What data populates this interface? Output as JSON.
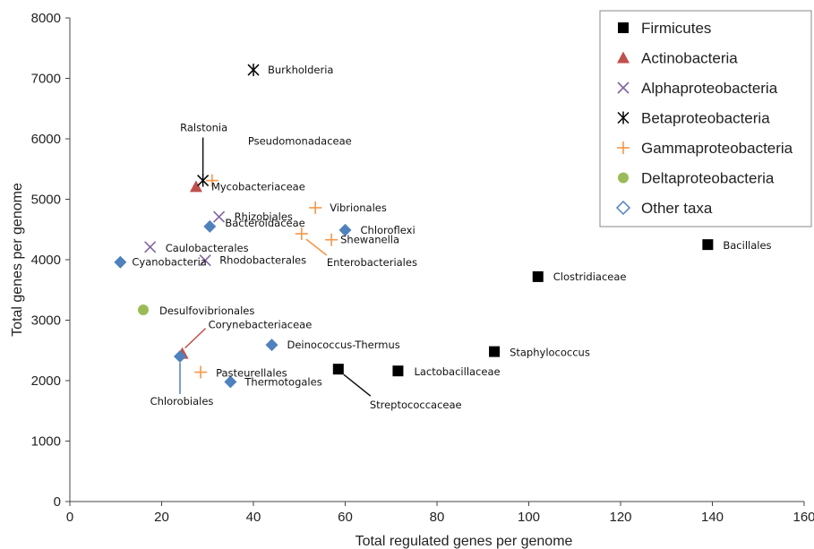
{
  "chart_data": {
    "type": "scatter",
    "xlabel": "Total regulated genes per genome",
    "ylabel": "Total genes per genome",
    "xlim": [
      0,
      160
    ],
    "ylim": [
      0,
      8000
    ],
    "xticks": [
      0,
      20,
      40,
      60,
      80,
      100,
      120,
      140,
      160
    ],
    "yticks": [
      0,
      1000,
      2000,
      3000,
      4000,
      5000,
      6000,
      7000,
      8000
    ],
    "xtick_labels": [
      "0",
      "20",
      "40",
      "60",
      "80",
      "100",
      "120",
      "140",
      "160"
    ],
    "ytick_labels": [
      "0",
      "1000",
      "2000",
      "3000",
      "4000",
      "5000",
      "6000",
      "7000",
      "8000"
    ],
    "grid": false,
    "legend_position": "top-right",
    "series": [
      {
        "name": "Firmicutes",
        "marker": "square",
        "color": "#000000",
        "points": [
          {
            "x": 139,
            "y": 4250,
            "label": "Bacillales"
          },
          {
            "x": 102,
            "y": 3720,
            "label": "Clostridiaceae"
          },
          {
            "x": 92.5,
            "y": 2480,
            "label": "Staphylococcus"
          },
          {
            "x": 71.5,
            "y": 2160,
            "label": "Lactobacillaceae"
          },
          {
            "x": 58.5,
            "y": 2190,
            "label": "Streptococcaceae"
          }
        ]
      },
      {
        "name": "Actinobacteria",
        "marker": "triangle",
        "color": "#c0504d",
        "points": [
          {
            "x": 27.5,
            "y": 5210,
            "label": "Mycobacteriaceae"
          },
          {
            "x": 24.5,
            "y": 2450,
            "label": "Corynebacteriaceae"
          }
        ]
      },
      {
        "name": "Alphaproteobacteria",
        "marker": "x",
        "color": "#8064a2",
        "points": [
          {
            "x": 32.5,
            "y": 4710,
            "label": "Rhizobiales"
          },
          {
            "x": 17.5,
            "y": 4210,
            "label": "Caulobacterales"
          },
          {
            "x": 29.5,
            "y": 3990,
            "label": "Rhodobacterales"
          }
        ]
      },
      {
        "name": "Betaproteobacteria",
        "marker": "star",
        "color": "#000000",
        "points": [
          {
            "x": 40,
            "y": 7140,
            "label": "Burkholderia"
          },
          {
            "x": 29,
            "y": 5310,
            "label": "Ralstonia"
          }
        ]
      },
      {
        "name": "Gammaproteobacteria",
        "marker": "plus",
        "color": "#f79646",
        "points": [
          {
            "x": 31,
            "y": 5310,
            "label": "Pseudomonadaceae"
          },
          {
            "x": 53.5,
            "y": 4860,
            "label": "Vibrionales"
          },
          {
            "x": 50.5,
            "y": 4430,
            "label": "Enterobacteriales"
          },
          {
            "x": 57,
            "y": 4330,
            "label": "Shewanella"
          },
          {
            "x": 28.5,
            "y": 2140,
            "label": "Pasteurellales"
          }
        ]
      },
      {
        "name": "Deltaproteobacteria",
        "marker": "circle",
        "color": "#9bbb59",
        "points": [
          {
            "x": 16,
            "y": 3170,
            "label": "Desulfovibrionales"
          }
        ]
      },
      {
        "name": "Other taxa",
        "marker": "diamond",
        "color": "#4f81bd",
        "points": [
          {
            "x": 30.5,
            "y": 4550,
            "label": "Bacteroidaceae"
          },
          {
            "x": 60,
            "y": 4490,
            "label": "Chloroflexi"
          },
          {
            "x": 11,
            "y": 3960,
            "label": "Cyanobacteria"
          },
          {
            "x": 44,
            "y": 2590,
            "label": "Deinococcus-Thermus"
          },
          {
            "x": 35,
            "y": 1980,
            "label": "Thermotogales"
          },
          {
            "x": 24,
            "y": 2400,
            "label": "Chlorobiales"
          }
        ]
      }
    ]
  }
}
